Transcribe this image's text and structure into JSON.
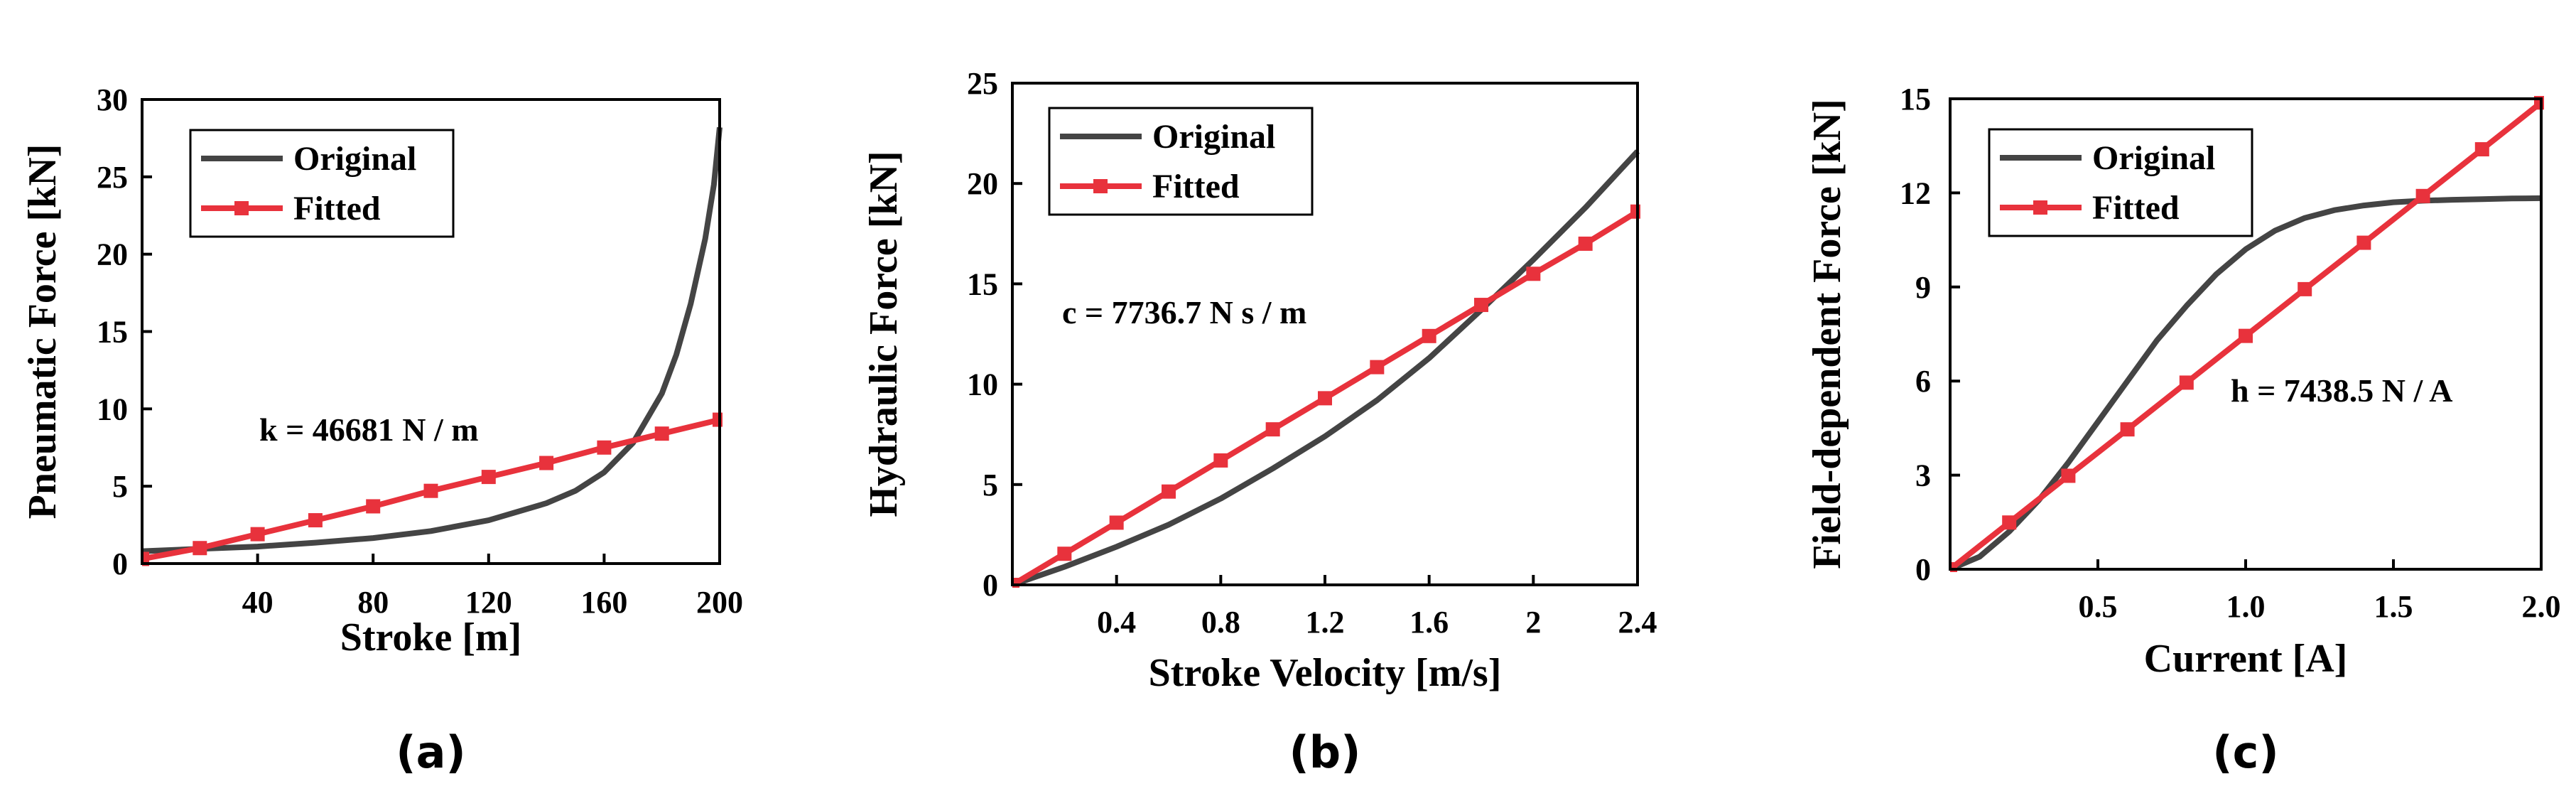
{
  "chart_data": [
    {
      "panel_label": "(a)",
      "type": "line",
      "xlabel": "Stroke [m]",
      "ylabel": "Pneumatic Force [kN]",
      "xlim": [
        0,
        200
      ],
      "ylim": [
        0,
        30
      ],
      "xticks": [
        40,
        80,
        120,
        160,
        200
      ],
      "yticks": [
        0,
        5,
        10,
        15,
        20,
        25,
        30
      ],
      "annotation": "k = 46681 N / m",
      "legend": [
        "Original",
        "Fitted"
      ],
      "series": [
        {
          "name": "Original",
          "color": "#444444",
          "x": [
            0,
            20,
            40,
            60,
            80,
            100,
            120,
            140,
            150,
            160,
            170,
            180,
            185,
            190,
            195,
            198,
            200
          ],
          "y": [
            0.8,
            0.95,
            1.1,
            1.35,
            1.65,
            2.1,
            2.8,
            3.9,
            4.7,
            5.9,
            7.8,
            11.0,
            13.5,
            16.8,
            21.0,
            24.5,
            28.2
          ]
        },
        {
          "name": "Fitted",
          "color": "#e8323c",
          "marker": "square",
          "x": [
            0,
            20,
            40,
            60,
            80,
            100,
            120,
            140,
            160,
            180,
            200
          ],
          "y": [
            0.3,
            1.0,
            1.9,
            2.8,
            3.7,
            4.7,
            5.6,
            6.5,
            7.5,
            8.4,
            9.3
          ]
        }
      ]
    },
    {
      "panel_label": "(b)",
      "type": "line",
      "xlabel": "Stroke Velocity [m/s]",
      "ylabel": "Hydraulic Force [kN]",
      "xlim": [
        0,
        2.4
      ],
      "ylim": [
        0,
        25
      ],
      "xticks": [
        0.4,
        0.8,
        1.2,
        1.6,
        2.0,
        2.4
      ],
      "yticks": [
        0,
        5,
        10,
        15,
        20,
        25
      ],
      "annotation": "c = 7736.7 N s / m",
      "legend": [
        "Original",
        "Fitted"
      ],
      "series": [
        {
          "name": "Original",
          "color": "#444444",
          "x": [
            0,
            0.2,
            0.4,
            0.6,
            0.8,
            1.0,
            1.2,
            1.4,
            1.6,
            1.8,
            2.0,
            2.2,
            2.4
          ],
          "y": [
            0,
            0.9,
            1.9,
            3.0,
            4.3,
            5.8,
            7.4,
            9.2,
            11.3,
            13.7,
            16.2,
            18.8,
            21.6
          ]
        },
        {
          "name": "Fitted",
          "color": "#e8323c",
          "marker": "square",
          "x": [
            0,
            0.2,
            0.4,
            0.6,
            0.8,
            1.0,
            1.2,
            1.4,
            1.6,
            1.8,
            2.0,
            2.2,
            2.4
          ],
          "y": [
            0,
            1.55,
            3.1,
            4.65,
            6.2,
            7.75,
            9.3,
            10.85,
            12.4,
            13.95,
            15.5,
            17.0,
            18.6
          ]
        }
      ]
    },
    {
      "panel_label": "(c)",
      "type": "line",
      "xlabel": "Current [A]",
      "ylabel": "Field-dependent Force [kN]",
      "xlim": [
        0,
        2.0
      ],
      "ylim": [
        0,
        15
      ],
      "xticks": [
        "0.5",
        "1.0",
        "1.5",
        "2.0"
      ],
      "yticks": [
        0,
        3,
        6,
        9,
        12,
        15
      ],
      "annotation": "h = 7438.5 N / A",
      "legend": [
        "Original",
        "Fitted"
      ],
      "series": [
        {
          "name": "Original",
          "color": "#444444",
          "x": [
            0,
            0.1,
            0.2,
            0.3,
            0.4,
            0.5,
            0.6,
            0.7,
            0.8,
            0.9,
            1.0,
            1.1,
            1.2,
            1.3,
            1.4,
            1.5,
            1.6,
            1.7,
            1.8,
            1.9,
            2.0
          ],
          "y": [
            0,
            0.4,
            1.2,
            2.2,
            3.4,
            4.7,
            6.0,
            7.3,
            8.4,
            9.4,
            10.2,
            10.8,
            11.2,
            11.45,
            11.6,
            11.7,
            11.75,
            11.78,
            11.8,
            11.82,
            11.83
          ]
        },
        {
          "name": "Fitted",
          "color": "#e8323c",
          "marker": "square",
          "x": [
            0,
            0.2,
            0.4,
            0.6,
            0.8,
            1.0,
            1.2,
            1.4,
            1.6,
            1.8,
            2.0
          ],
          "y": [
            0,
            1.49,
            2.98,
            4.46,
            5.95,
            7.44,
            8.93,
            10.41,
            11.9,
            13.39,
            14.88
          ]
        }
      ]
    }
  ]
}
